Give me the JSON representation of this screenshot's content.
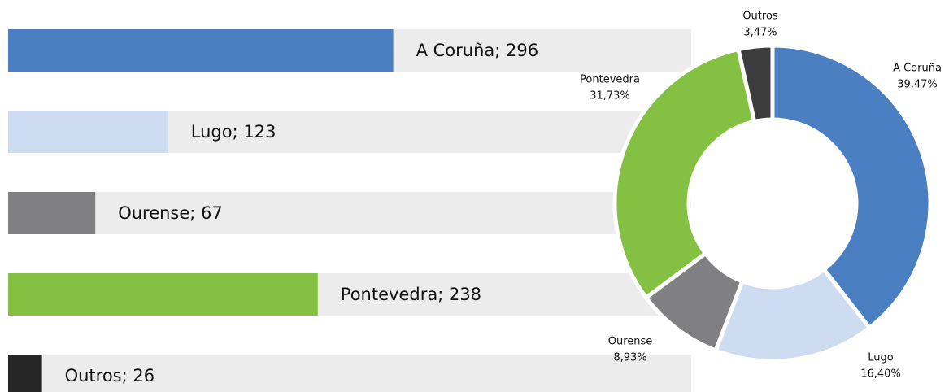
{
  "chart_data": [
    {
      "type": "bar",
      "categories": [
        "A Coruña",
        "Lugo",
        "Ourense",
        "Pontevedra",
        "Outros"
      ],
      "values": [
        296,
        123,
        67,
        238,
        26
      ],
      "value_labels": [
        "A Coruña; 296",
        "Lugo; 123",
        "Ourense; 67",
        "Pontevedra; 238",
        "Outros; 26"
      ],
      "colors": [
        "#4a7fc1",
        "#cddcf0",
        "#808083",
        "#84c143",
        "#262626"
      ],
      "xlim": [
        0,
        525
      ]
    },
    {
      "type": "donut",
      "categories": [
        "A Coruña",
        "Lugo",
        "Ourense",
        "Pontevedra",
        "Outros"
      ],
      "values": [
        39.47,
        16.4,
        8.93,
        31.73,
        3.47
      ],
      "value_labels": [
        "39,47%",
        "16,40%",
        "8,93%",
        "31,73%",
        "3,47%"
      ],
      "colors": [
        "#4a7fc1",
        "#cddcf0",
        "#808083",
        "#84c143",
        "#3c3c3c"
      ]
    }
  ]
}
